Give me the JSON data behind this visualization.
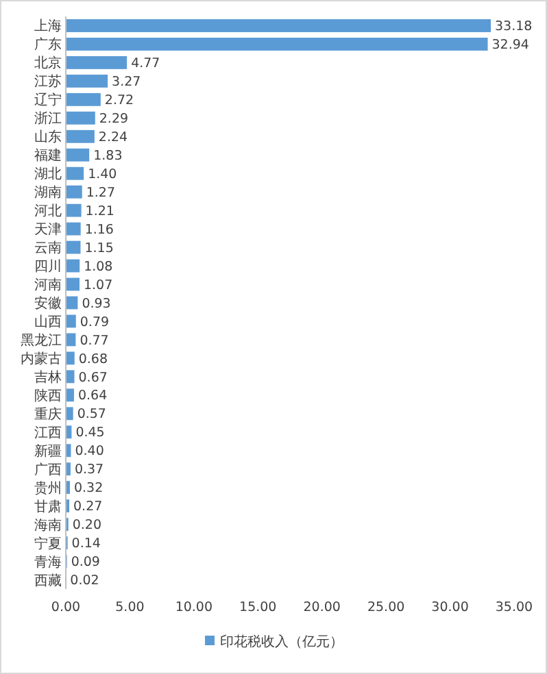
{
  "chart_data": {
    "type": "bar",
    "orientation": "horizontal",
    "categories": [
      "上海",
      "广东",
      "北京",
      "江苏",
      "辽宁",
      "浙江",
      "山东",
      "福建",
      "湖北",
      "湖南",
      "河北",
      "天津",
      "云南",
      "四川",
      "河南",
      "安徽",
      "山西",
      "黑龙江",
      "内蒙古",
      "吉林",
      "陕西",
      "重庆",
      "江西",
      "新疆",
      "广西",
      "贵州",
      "甘肃",
      "海南",
      "宁夏",
      "青海",
      "西藏"
    ],
    "series": [
      {
        "name": "印花税收入（亿元）",
        "color": "#5b9bd5",
        "values": [
          33.18,
          32.94,
          4.77,
          3.27,
          2.72,
          2.29,
          2.24,
          1.83,
          1.4,
          1.27,
          1.21,
          1.16,
          1.15,
          1.08,
          1.07,
          0.93,
          0.79,
          0.77,
          0.68,
          0.67,
          0.64,
          0.57,
          0.45,
          0.4,
          0.37,
          0.32,
          0.27,
          0.2,
          0.14,
          0.09,
          0.02
        ],
        "value_labels": [
          "33.18",
          "32.94",
          "4.77",
          "3.27",
          "2.72",
          "2.29",
          "2.24",
          "1.83",
          "1.40",
          "1.27",
          "1.21",
          "1.16",
          "1.15",
          "1.08",
          "1.07",
          "0.93",
          "0.79",
          "0.77",
          "0.68",
          "0.67",
          "0.64",
          "0.57",
          "0.45",
          "0.40",
          "0.37",
          "0.32",
          "0.27",
          "0.20",
          "0.14",
          "0.09",
          "0.02"
        ]
      }
    ],
    "xlim": [
      0,
      35
    ],
    "xticks": [
      {
        "value": 0,
        "label": "0.00"
      },
      {
        "value": 5,
        "label": "5.00"
      },
      {
        "value": 10,
        "label": "10.00"
      },
      {
        "value": 15,
        "label": "15.00"
      },
      {
        "value": 20,
        "label": "20.00"
      },
      {
        "value": 25,
        "label": "25.00"
      },
      {
        "value": 30,
        "label": "30.00"
      },
      {
        "value": 35,
        "label": "35.00"
      }
    ],
    "legend": "bottom"
  }
}
